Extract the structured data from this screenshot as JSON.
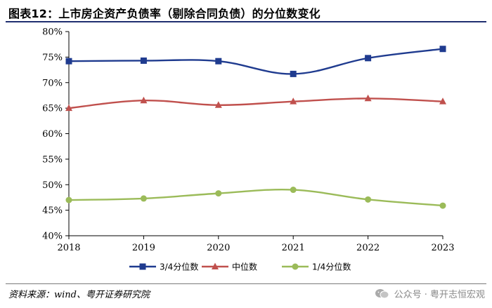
{
  "title": "图表12：上市房企资产负债率（剔除合同负债）的分位数变化",
  "source": "资料来源：wind、粤开证券研究院",
  "watermark": "公众号 · 粤开志恒宏观",
  "colors": {
    "q3": "#1f3b8f",
    "median": "#c0504d",
    "q1": "#9bbb59",
    "axis": "#000000",
    "rule": "#1f2f70"
  },
  "chart_data": {
    "type": "line",
    "x": [
      "2018",
      "2019",
      "2020",
      "2021",
      "2022",
      "2023"
    ],
    "ylim": [
      40,
      80
    ],
    "yticks": [
      "40%",
      "45%",
      "50%",
      "55%",
      "60%",
      "65%",
      "70%",
      "75%",
      "80%"
    ],
    "ytick_values": [
      40,
      45,
      50,
      55,
      60,
      65,
      70,
      75,
      80
    ],
    "legend_position": "bottom",
    "grid": false,
    "series": [
      {
        "name": "3/4分位数",
        "marker": "square",
        "color": "#1f3b8f",
        "values": [
          74.2,
          74.3,
          74.2,
          71.7,
          74.8,
          76.6
        ]
      },
      {
        "name": "中位数",
        "marker": "triangle",
        "color": "#c0504d",
        "values": [
          65.0,
          66.5,
          65.6,
          66.3,
          66.9,
          66.3
        ]
      },
      {
        "name": "1/4分位数",
        "marker": "circle",
        "color": "#9bbb59",
        "values": [
          47.0,
          47.3,
          48.3,
          49.0,
          47.1,
          45.9
        ]
      }
    ]
  }
}
